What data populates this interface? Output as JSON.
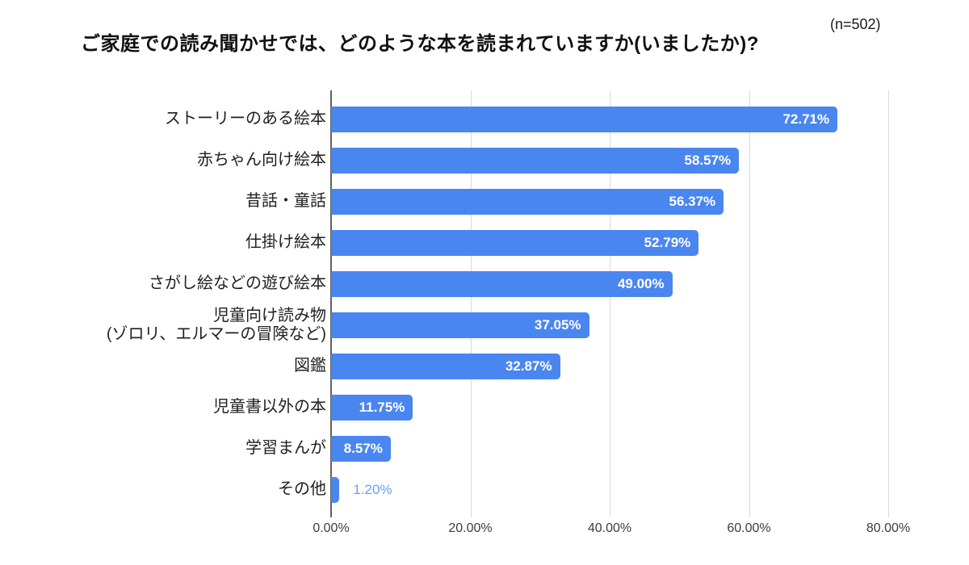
{
  "header": {
    "title": "ご家庭での読み聞かせでは、どのような本を読まれていますか(いましたか)?",
    "sample_size": "(n=502)"
  },
  "chart_data": {
    "type": "bar",
    "orientation": "horizontal",
    "title": "ご家庭での読み聞かせでは、どのような本を読まれていますか(いましたか)?",
    "sample_size": "(n=502)",
    "categories": [
      "ストーリーのある絵本",
      "赤ちゃん向け絵本",
      "昔話・童話",
      "仕掛け絵本",
      "さがし絵などの遊び絵本",
      "児童向け読み物\n(ゾロリ、エルマーの冒険など)",
      "図鑑",
      "児童書以外の本",
      "学習まんが",
      "その他"
    ],
    "values": [
      72.71,
      58.57,
      56.37,
      52.79,
      49.0,
      37.05,
      32.87,
      11.75,
      8.57,
      1.2
    ],
    "value_labels": [
      "72.71%",
      "58.57%",
      "56.37%",
      "52.79%",
      "49.00%",
      "37.05%",
      "32.87%",
      "11.75%",
      "8.57%",
      "1.20%"
    ],
    "x_ticks": [
      "0.00%",
      "20.00%",
      "40.00%",
      "60.00%",
      "80.00%"
    ],
    "x_tick_values": [
      0,
      20,
      40,
      60,
      80
    ],
    "xlim": [
      0,
      80
    ],
    "grid": true,
    "legend": "none",
    "colors": {
      "bar": "#4a86f0",
      "inside_label": "#ffffff",
      "outside_label": "#6d9eeb",
      "gridline": "#d9d9d9",
      "axis_line": "#616161"
    },
    "outside_label_threshold": 6
  }
}
